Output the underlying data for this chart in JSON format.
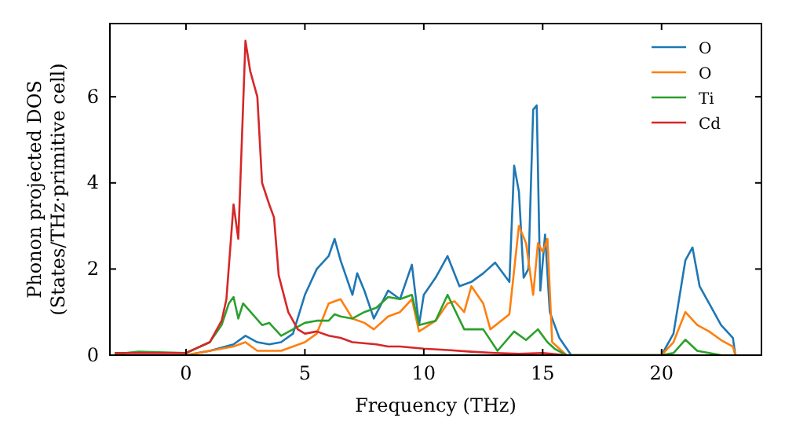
{
  "chart_data": {
    "type": "line",
    "xlabel": "Frequency (THz)",
    "ylabel": "Phonon projected DOS\n(States/THz·primitive cell)",
    "xlim": [
      -3.2,
      24.2
    ],
    "ylim": [
      0,
      7.7
    ],
    "xticks": [
      0,
      5,
      10,
      15,
      20
    ],
    "yticks": [
      0,
      2,
      4,
      6
    ],
    "legend": "top right",
    "series": [
      {
        "name": "O",
        "color": "#1f77b4",
        "x": [
          -3,
          0,
          1,
          2,
          2.5,
          3,
          3.5,
          4,
          4.5,
          5,
          5.5,
          6,
          6.25,
          6.5,
          7,
          7.2,
          7.5,
          7.9,
          8.5,
          9,
          9.5,
          9.8,
          10,
          10.5,
          11,
          11.5,
          12,
          12.5,
          13,
          13.6,
          13.8,
          14,
          14.2,
          14.4,
          14.6,
          14.75,
          14.9,
          15.1,
          15.3,
          15.7,
          16.2,
          20,
          20.5,
          21,
          21.3,
          21.6,
          22,
          22.5,
          23,
          23.1
        ],
        "values": [
          0,
          0,
          0.1,
          0.25,
          0.45,
          0.3,
          0.25,
          0.3,
          0.5,
          1.4,
          2.0,
          2.3,
          2.7,
          2.2,
          1.4,
          1.9,
          1.5,
          0.85,
          1.5,
          1.3,
          2.1,
          0.7,
          1.4,
          1.8,
          2.3,
          1.6,
          1.7,
          1.9,
          2.15,
          1.7,
          4.4,
          3.8,
          1.8,
          2.0,
          5.7,
          5.8,
          1.5,
          2.8,
          1.0,
          0.4,
          0,
          0,
          0.5,
          2.2,
          2.5,
          1.6,
          1.2,
          0.7,
          0.4,
          0
        ]
      },
      {
        "name": "O",
        "color": "#ff7f0e",
        "x": [
          -3,
          0,
          1,
          2,
          2.5,
          3,
          4,
          5,
          5.5,
          6,
          6.25,
          6.5,
          7,
          7.5,
          7.9,
          8.5,
          9,
          9.5,
          9.8,
          10.5,
          11,
          11.3,
          11.7,
          12,
          12.5,
          12.8,
          13.6,
          14,
          14.3,
          14.6,
          14.8,
          15,
          15.2,
          15.4,
          16,
          20,
          20.5,
          21,
          21.5,
          22,
          22.5,
          23,
          23.1
        ],
        "values": [
          0,
          0,
          0.1,
          0.2,
          0.3,
          0.1,
          0.1,
          0.3,
          0.5,
          1.2,
          1.25,
          1.3,
          0.85,
          0.75,
          0.6,
          0.9,
          1.0,
          1.3,
          0.55,
          0.8,
          1.2,
          1.25,
          1.0,
          1.6,
          1.2,
          0.6,
          0.95,
          3.0,
          2.6,
          1.4,
          2.6,
          2.4,
          2.7,
          0.3,
          0,
          0,
          0.3,
          1.0,
          0.7,
          0.55,
          0.35,
          0.2,
          0
        ]
      },
      {
        "name": "Ti",
        "color": "#2ca02c",
        "x": [
          -3,
          -2,
          0,
          1,
          1.5,
          1.8,
          2,
          2.2,
          2.4,
          2.8,
          3.2,
          3.5,
          4,
          4.5,
          5,
          5.5,
          6,
          6.25,
          6.5,
          7,
          7.5,
          8,
          8.5,
          9,
          9.5,
          9.8,
          10.5,
          11,
          11.7,
          12.5,
          13.1,
          13.8,
          14.3,
          14.8,
          15.2,
          15.5,
          16,
          20,
          20.5,
          21,
          21.5,
          22.5
        ],
        "values": [
          0.02,
          0.08,
          0.05,
          0.3,
          0.7,
          1.2,
          1.35,
          0.85,
          1.2,
          0.95,
          0.7,
          0.75,
          0.45,
          0.6,
          0.75,
          0.8,
          0.8,
          0.95,
          0.9,
          0.85,
          1.0,
          1.1,
          1.35,
          1.3,
          1.4,
          0.7,
          0.8,
          1.4,
          0.6,
          0.6,
          0.1,
          0.55,
          0.35,
          0.6,
          0.3,
          0.15,
          0,
          0,
          0.05,
          0.36,
          0.1,
          0
        ]
      },
      {
        "name": "Cd",
        "color": "#d62728",
        "x": [
          -3,
          0,
          1,
          1.5,
          1.7,
          2,
          2.2,
          2.5,
          2.7,
          3,
          3.2,
          3.5,
          3.7,
          3.9,
          4.3,
          4.7,
          5,
          5.5,
          6,
          6.5,
          7,
          8,
          8.5,
          9,
          10,
          11,
          12,
          13,
          14,
          15,
          16
        ],
        "values": [
          0.05,
          0.05,
          0.3,
          0.8,
          1.3,
          3.5,
          2.7,
          7.3,
          6.6,
          6.0,
          4.0,
          3.5,
          3.2,
          1.85,
          1.0,
          0.6,
          0.5,
          0.55,
          0.45,
          0.4,
          0.3,
          0.25,
          0.2,
          0.2,
          0.15,
          0.12,
          0.08,
          0.05,
          0.03,
          0.05,
          0
        ]
      }
    ]
  }
}
